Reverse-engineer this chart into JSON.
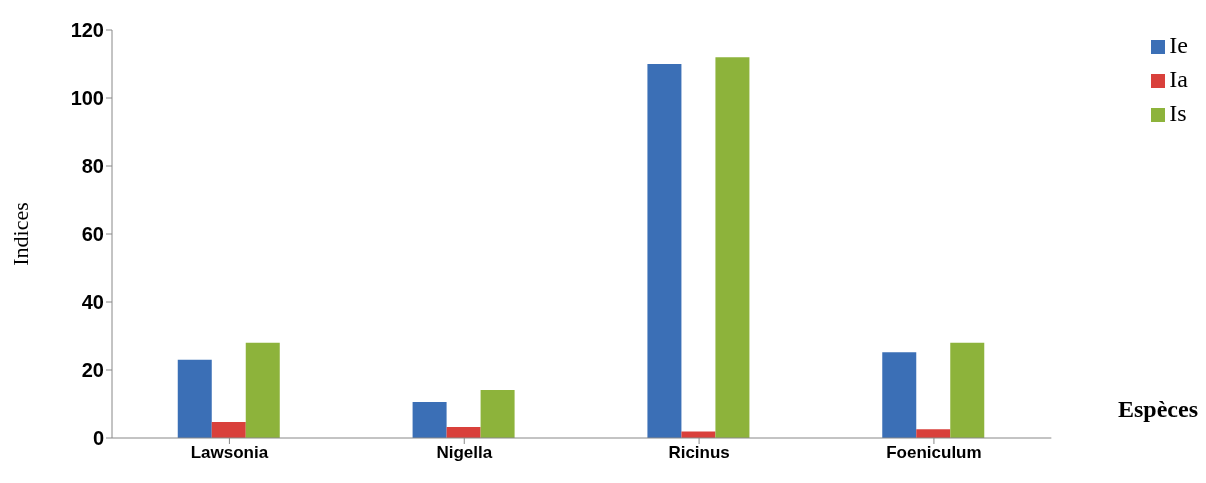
{
  "chart_data": {
    "type": "bar",
    "xlabel": "Espèces",
    "ylabel": "Indices",
    "categories": [
      "Lawsonia",
      "Nigella",
      "Ricinus",
      "Foeniculum"
    ],
    "series": [
      {
        "name": "Ie",
        "color": "#3b6fb6",
        "values": [
          23,
          10.6,
          110,
          25.2
        ]
      },
      {
        "name": "Ia",
        "color": "#d9403b",
        "values": [
          4.7,
          3.2,
          1.9,
          2.6
        ]
      },
      {
        "name": "Is",
        "color": "#8db33b",
        "values": [
          28,
          14.1,
          112,
          28
        ]
      }
    ],
    "ylim": [
      0,
      120
    ],
    "yticks": [
      0,
      20,
      40,
      60,
      80,
      100,
      120
    ],
    "legend": "top right"
  }
}
